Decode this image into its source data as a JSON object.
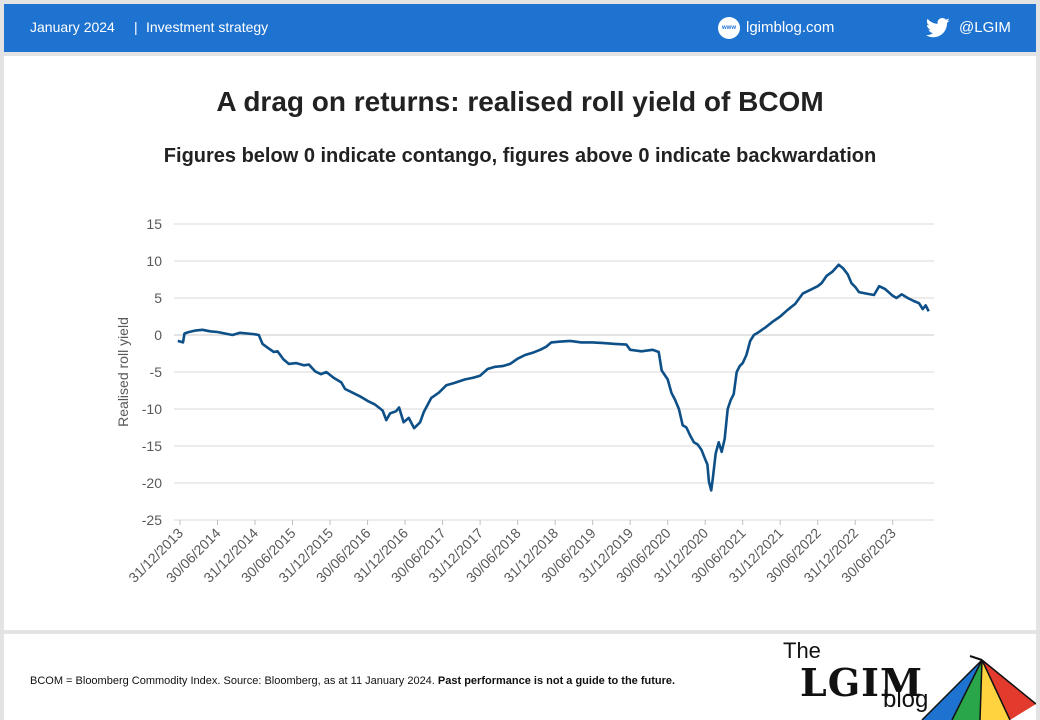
{
  "header": {
    "date": "January 2024",
    "separator": "|",
    "category": "Investment strategy",
    "site": "lgimblog.com",
    "site_icon_text": "www",
    "handle": "@LGIM",
    "icons": [
      "www-globe-icon",
      "twitter-bird-icon"
    ],
    "color": "#1f73d0"
  },
  "chart_data": {
    "type": "line",
    "title": "A drag on returns: realised roll yield of BCOM",
    "subtitle": "Figures below 0 indicate contango, figures above 0 indicate backwardation",
    "xlabel": "",
    "ylabel": "Realised roll yield",
    "ylim": [
      -25,
      15
    ],
    "yticks": [
      15,
      10,
      5,
      0,
      -5,
      -10,
      -15,
      -20,
      -25
    ],
    "xlim": [
      2013.92,
      2024.05
    ],
    "xticks": [
      {
        "t": 2014.0,
        "label": "31/12/2013"
      },
      {
        "t": 2014.5,
        "label": "30/06/2014"
      },
      {
        "t": 2015.0,
        "label": "31/12/2014"
      },
      {
        "t": 2015.5,
        "label": "30/06/2015"
      },
      {
        "t": 2016.0,
        "label": "31/12/2015"
      },
      {
        "t": 2016.5,
        "label": "30/06/2016"
      },
      {
        "t": 2017.0,
        "label": "31/12/2016"
      },
      {
        "t": 2017.5,
        "label": "30/06/2017"
      },
      {
        "t": 2018.0,
        "label": "31/12/2017"
      },
      {
        "t": 2018.5,
        "label": "30/06/2018"
      },
      {
        "t": 2019.0,
        "label": "31/12/2018"
      },
      {
        "t": 2019.5,
        "label": "30/06/2019"
      },
      {
        "t": 2020.0,
        "label": "31/12/2019"
      },
      {
        "t": 2020.5,
        "label": "30/06/2020"
      },
      {
        "t": 2021.0,
        "label": "31/12/2020"
      },
      {
        "t": 2021.5,
        "label": "30/06/2021"
      },
      {
        "t": 2022.0,
        "label": "31/12/2021"
      },
      {
        "t": 2022.5,
        "label": "30/06/2022"
      },
      {
        "t": 2023.0,
        "label": "31/12/2022"
      },
      {
        "t": 2023.5,
        "label": "30/06/2023"
      }
    ],
    "grid": true,
    "series": [
      {
        "name": "Realised roll yield",
        "color": "#0d4f87",
        "points": [
          [
            2013.97,
            -0.8
          ],
          [
            2014.04,
            -1.0
          ],
          [
            2014.06,
            0.2
          ],
          [
            2014.12,
            0.4
          ],
          [
            2014.2,
            0.6
          ],
          [
            2014.3,
            0.7
          ],
          [
            2014.4,
            0.5
          ],
          [
            2014.5,
            0.4
          ],
          [
            2014.6,
            0.2
          ],
          [
            2014.7,
            0.0
          ],
          [
            2014.8,
            0.3
          ],
          [
            2014.9,
            0.2
          ],
          [
            2015.0,
            0.1
          ],
          [
            2015.05,
            0.0
          ],
          [
            2015.1,
            -1.2
          ],
          [
            2015.18,
            -1.8
          ],
          [
            2015.25,
            -2.3
          ],
          [
            2015.3,
            -2.2
          ],
          [
            2015.38,
            -3.3
          ],
          [
            2015.45,
            -3.9
          ],
          [
            2015.55,
            -3.8
          ],
          [
            2015.65,
            -4.1
          ],
          [
            2015.72,
            -4.0
          ],
          [
            2015.8,
            -4.9
          ],
          [
            2015.88,
            -5.3
          ],
          [
            2015.95,
            -5.0
          ],
          [
            2016.05,
            -5.8
          ],
          [
            2016.15,
            -6.4
          ],
          [
            2016.2,
            -7.3
          ],
          [
            2016.3,
            -7.8
          ],
          [
            2016.4,
            -8.3
          ],
          [
            2016.5,
            -8.9
          ],
          [
            2016.6,
            -9.4
          ],
          [
            2016.7,
            -10.2
          ],
          [
            2016.75,
            -11.5
          ],
          [
            2016.8,
            -10.6
          ],
          [
            2016.88,
            -10.3
          ],
          [
            2016.92,
            -9.8
          ],
          [
            2016.98,
            -11.8
          ],
          [
            2017.05,
            -11.2
          ],
          [
            2017.12,
            -12.6
          ],
          [
            2017.2,
            -11.8
          ],
          [
            2017.25,
            -10.4
          ],
          [
            2017.35,
            -8.5
          ],
          [
            2017.45,
            -7.8
          ],
          [
            2017.55,
            -6.8
          ],
          [
            2017.65,
            -6.5
          ],
          [
            2017.8,
            -6.0
          ],
          [
            2017.9,
            -5.8
          ],
          [
            2018.0,
            -5.5
          ],
          [
            2018.1,
            -4.6
          ],
          [
            2018.2,
            -4.3
          ],
          [
            2018.3,
            -4.2
          ],
          [
            2018.4,
            -3.9
          ],
          [
            2018.5,
            -3.2
          ],
          [
            2018.6,
            -2.7
          ],
          [
            2018.7,
            -2.4
          ],
          [
            2018.8,
            -2.0
          ],
          [
            2018.88,
            -1.6
          ],
          [
            2018.95,
            -1.0
          ],
          [
            2019.05,
            -0.9
          ],
          [
            2019.2,
            -0.8
          ],
          [
            2019.35,
            -1.0
          ],
          [
            2019.5,
            -1.0
          ],
          [
            2019.65,
            -1.1
          ],
          [
            2019.8,
            -1.2
          ],
          [
            2019.95,
            -1.3
          ],
          [
            2020.0,
            -2.0
          ],
          [
            2020.15,
            -2.2
          ],
          [
            2020.3,
            -2.0
          ],
          [
            2020.38,
            -2.3
          ],
          [
            2020.42,
            -4.8
          ],
          [
            2020.5,
            -6.0
          ],
          [
            2020.55,
            -7.8
          ],
          [
            2020.6,
            -8.8
          ],
          [
            2020.65,
            -10.0
          ],
          [
            2020.7,
            -12.2
          ],
          [
            2020.75,
            -12.5
          ],
          [
            2020.8,
            -13.6
          ],
          [
            2020.85,
            -14.5
          ],
          [
            2020.9,
            -14.8
          ],
          [
            2020.95,
            -15.5
          ],
          [
            2021.0,
            -16.8
          ],
          [
            2021.03,
            -17.5
          ],
          [
            2021.05,
            -19.8
          ],
          [
            2021.08,
            -21.0
          ],
          [
            2021.1,
            -19.5
          ],
          [
            2021.14,
            -16.0
          ],
          [
            2021.18,
            -14.5
          ],
          [
            2021.22,
            -15.8
          ],
          [
            2021.26,
            -14.0
          ],
          [
            2021.3,
            -10.0
          ],
          [
            2021.34,
            -8.8
          ],
          [
            2021.38,
            -8.0
          ],
          [
            2021.42,
            -5.0
          ],
          [
            2021.46,
            -4.2
          ],
          [
            2021.5,
            -3.8
          ],
          [
            2021.55,
            -2.7
          ],
          [
            2021.6,
            -0.8
          ],
          [
            2021.65,
            0.0
          ],
          [
            2021.7,
            0.3
          ],
          [
            2021.8,
            1.0
          ],
          [
            2021.9,
            1.8
          ],
          [
            2022.0,
            2.5
          ],
          [
            2022.1,
            3.4
          ],
          [
            2022.2,
            4.2
          ],
          [
            2022.3,
            5.6
          ],
          [
            2022.4,
            6.1
          ],
          [
            2022.5,
            6.6
          ],
          [
            2022.55,
            7.0
          ],
          [
            2022.62,
            8.0
          ],
          [
            2022.7,
            8.6
          ],
          [
            2022.78,
            9.5
          ],
          [
            2022.84,
            9.0
          ],
          [
            2022.9,
            8.2
          ],
          [
            2022.95,
            7.0
          ],
          [
            2023.0,
            6.5
          ],
          [
            2023.05,
            5.8
          ],
          [
            2023.15,
            5.6
          ],
          [
            2023.25,
            5.4
          ],
          [
            2023.32,
            6.6
          ],
          [
            2023.4,
            6.2
          ],
          [
            2023.5,
            5.3
          ],
          [
            2023.55,
            5.0
          ],
          [
            2023.62,
            5.5
          ],
          [
            2023.7,
            5.0
          ],
          [
            2023.78,
            4.6
          ],
          [
            2023.85,
            4.3
          ],
          [
            2023.9,
            3.5
          ],
          [
            2023.94,
            4.0
          ],
          [
            2023.98,
            3.2
          ]
        ]
      }
    ]
  },
  "footer": {
    "note": "BCOM = Bloomberg Commodity Index. Source: Bloomberg, as at 11 January 2024. ",
    "note_bold": "Past performance is not a guide to the future.",
    "logo_the": "The",
    "logo_lgim": "LGIM",
    "logo_blog": "blog",
    "logo_icon": "umbrella-icon",
    "umbrella_colors": [
      "#1f73d0",
      "#2aa64a",
      "#ffd23f",
      "#e23b2e"
    ]
  }
}
